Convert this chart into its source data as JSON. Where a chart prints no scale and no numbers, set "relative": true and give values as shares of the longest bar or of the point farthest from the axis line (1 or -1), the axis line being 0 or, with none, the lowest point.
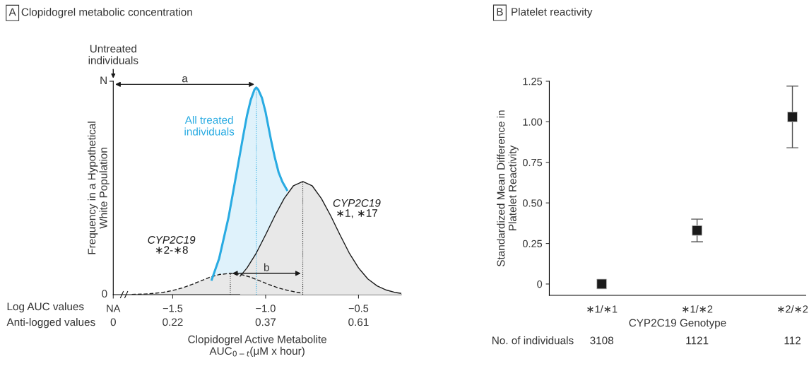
{
  "chart_data": [
    {
      "type": "area",
      "title": "Clopidogrel metabolic concentration",
      "xlabel": "Clopidogrel Active Metabolite\nAUC$_{0−t}$(μM x hour)",
      "ylabel": "Frequency in a Hypothetical\nWhite Population",
      "annotations": [
        "A",
        "Untreated\nindividuals",
        "a",
        "b",
        "Log AUC values",
        "Anti-logged values",
        "0",
        "0.22",
        "0.37",
        "0.61",
        "N",
        "0"
      ],
      "relative": true,
      "xlim": [
        -1.82,
        -0.27
      ],
      "xticks": [
        {
          "value": -1.82,
          "label": "NA"
        },
        {
          "value": -1.5,
          "label": "−1.5"
        },
        {
          "value": -1.0,
          "label": "−1.0"
        },
        {
          "value": -0.5,
          "label": "−0.5"
        }
      ],
      "grid": false,
      "legend": false,
      "series": [
        {
          "name": "All treated\nindividuals",
          "color": "#29abe2",
          "line_style": "solid",
          "x": [
            -1.29,
            -1.25,
            -1.2,
            -1.15,
            -1.12,
            -1.1,
            -1.08,
            -1.06,
            -1.05,
            -1.04,
            -1.02,
            -1.0,
            -0.97,
            -0.95,
            -0.93,
            -0.91,
            -0.885
          ],
          "values": [
            0.072,
            0.175,
            0.371,
            0.619,
            0.77,
            0.866,
            0.94,
            0.99,
            1.0,
            0.99,
            0.95,
            0.88,
            0.742,
            0.66,
            0.59,
            0.545,
            0.505
          ]
        },
        {
          "name": "CYP2C19\n∗2-∗8",
          "color": "#1a1a1a",
          "line_style": "dashed",
          "x": [
            -1.72,
            -1.65,
            -1.6,
            -1.55,
            -1.5,
            -1.45,
            -1.4,
            -1.35,
            -1.3,
            -1.25,
            -1.19,
            -1.13,
            -1.08,
            -1.03,
            -0.98,
            -0.93,
            -0.88,
            -0.83,
            -0.8
          ],
          "values": [
            0.001,
            0.003,
            0.006,
            0.011,
            0.02,
            0.032,
            0.048,
            0.066,
            0.084,
            0.097,
            0.103,
            0.097,
            0.084,
            0.066,
            0.048,
            0.032,
            0.02,
            0.011,
            0.007
          ]
        },
        {
          "name": "CYP2C19\n∗1, ∗17",
          "color": "#1a1a1a",
          "line_style": "solid",
          "x": [
            -1.137,
            -1.1,
            -1.05,
            -1.0,
            -0.95,
            -0.9,
            -0.85,
            -0.8,
            -0.75,
            -0.7,
            -0.65,
            -0.6,
            -0.55,
            -0.5,
            -0.45,
            -0.4,
            -0.35,
            -0.3,
            -0.27
          ],
          "values": [
            0.089,
            0.129,
            0.201,
            0.289,
            0.381,
            0.464,
            0.526,
            0.546,
            0.526,
            0.464,
            0.381,
            0.289,
            0.201,
            0.129,
            0.076,
            0.042,
            0.022,
            0.01,
            0.006
          ]
        }
      ],
      "ref_lines": [
        {
          "axis": "x",
          "value": -1.05,
          "color": "#29abe2",
          "line_style": "dotted"
        },
        {
          "axis": "x",
          "value": -0.8,
          "color": "#333333",
          "line_style": "dotted"
        },
        {
          "axis": "x",
          "value": -1.19,
          "color": "#333333",
          "line_style": "dotted"
        }
      ]
    },
    {
      "type": "scatter",
      "title": "Platelet reactivity",
      "xlabel": "CYP2C19 Genotype",
      "ylabel": "Standardized Mean Difference in\nPlatelet Reactivity",
      "annotations": [
        "B",
        "No. of individuals",
        "3108",
        "1121",
        "112"
      ],
      "categories": [
        "∗1/∗1",
        "∗1/∗2",
        "∗2/∗2"
      ],
      "values": [
        0,
        0.33,
        1.03
      ],
      "errors": [
        null,
        [
          0.26,
          0.4
        ],
        [
          0.84,
          1.22
        ]
      ],
      "color": "#1a1a1a",
      "marker": "square",
      "ylim": [
        -0.07,
        1.25
      ],
      "yticks": [
        0,
        {
          "value": 0.25,
          "label": "0.25"
        },
        {
          "value": 0.5,
          "label": "0.50"
        },
        {
          "value": 0.75,
          "label": "0.75"
        },
        {
          "value": 1.0,
          "label": "1.00"
        },
        {
          "value": 1.25,
          "label": "1.25"
        }
      ],
      "grid": false,
      "legend": false
    }
  ]
}
